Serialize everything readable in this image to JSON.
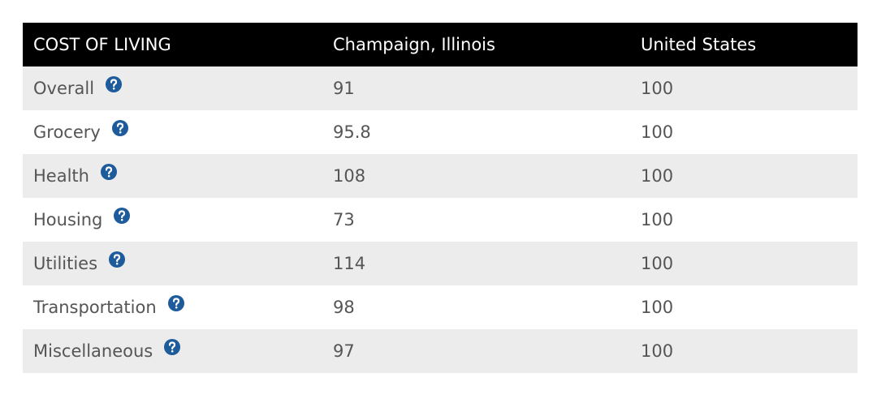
{
  "table": {
    "header": [
      "COST OF LIVING",
      "Champaign, Illinois",
      "United States"
    ],
    "rows": [
      [
        "Overall",
        91,
        100
      ],
      [
        "Grocery",
        95.8,
        100
      ],
      [
        "Health",
        108,
        100
      ],
      [
        "Housing",
        73,
        100
      ],
      [
        "Utilities",
        114,
        100
      ],
      [
        "Transportation",
        98,
        100
      ],
      [
        "Miscellaneous",
        97,
        100
      ]
    ]
  }
}
